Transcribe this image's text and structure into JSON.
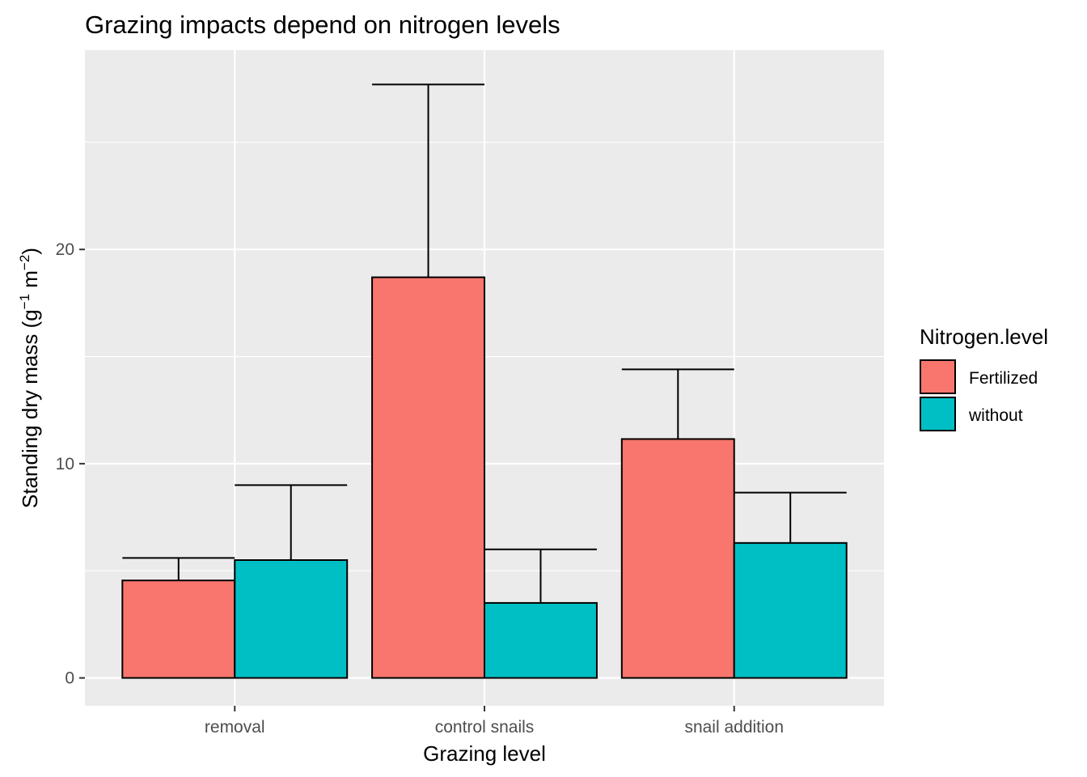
{
  "chart_data": {
    "type": "bar",
    "title": "Grazing impacts depend on nitrogen levels",
    "xlabel": "Grazing level",
    "ylabel": "Standing dry mass (g",
    "ylabel_sup1": "−1",
    "ylabel_mid": " m",
    "ylabel_sup2": "−2",
    "ylabel_end": ")",
    "categories": [
      "removal",
      "control snails",
      "snail addition"
    ],
    "series": [
      {
        "name": "Fertilized",
        "color": "#F8766D",
        "values": [
          4.55,
          18.7,
          11.15
        ],
        "error_upper": [
          5.6,
          27.7,
          14.4
        ]
      },
      {
        "name": "without",
        "color": "#00BFC4",
        "values": [
          5.5,
          3.5,
          6.3
        ],
        "error_upper": [
          9.0,
          6.0,
          8.65
        ]
      }
    ],
    "ylim": [
      -1.3,
      29.3
    ],
    "yticks": [
      0,
      10,
      20
    ],
    "ytick_labels": [
      "0",
      "10",
      "20"
    ],
    "grid": true,
    "legend_title": "Nitrogen.level",
    "legend_position": "right"
  }
}
